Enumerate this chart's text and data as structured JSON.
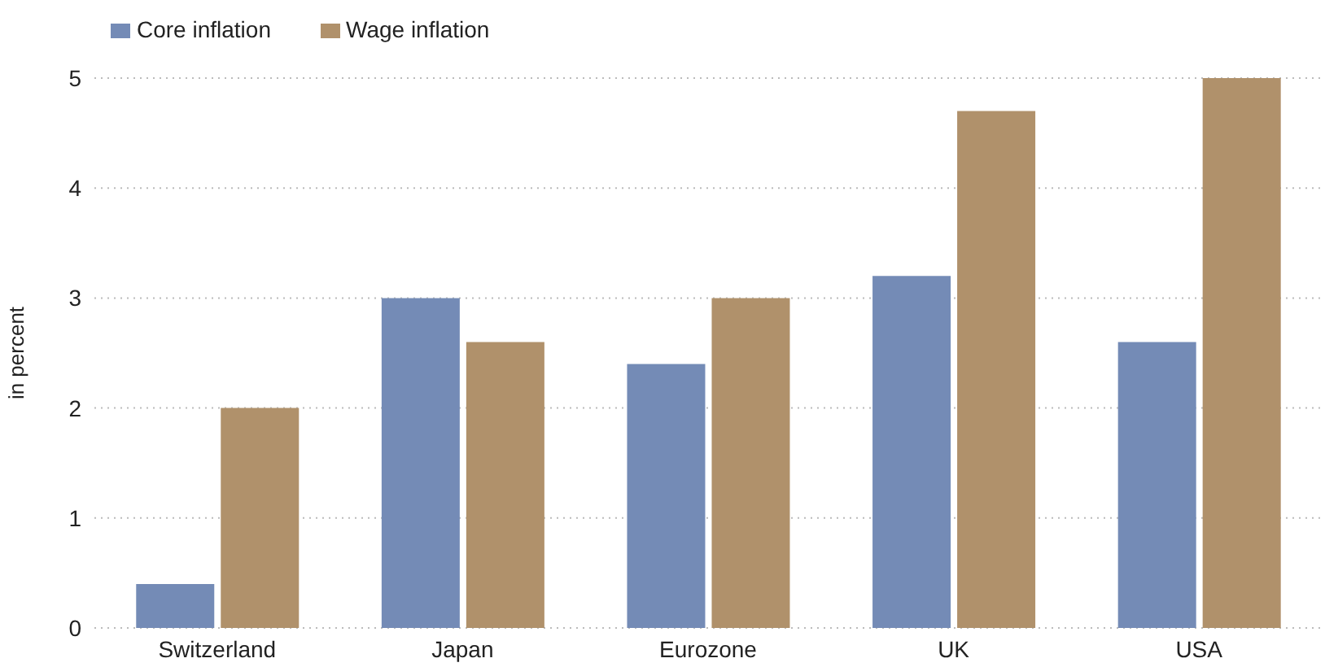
{
  "chart_data": {
    "type": "bar",
    "ylabel": "in percent",
    "categories": [
      "Switzerland",
      "Japan",
      "Eurozone",
      "UK",
      "USA"
    ],
    "series": [
      {
        "name": "Core inflation",
        "color": "#748bb6",
        "values": [
          0.4,
          3.0,
          2.4,
          3.2,
          2.6
        ]
      },
      {
        "name": "Wage inflation",
        "color": "#b0916b",
        "values": [
          2.0,
          2.6,
          3.0,
          4.7,
          5.0
        ]
      }
    ],
    "ylim": [
      0,
      5
    ],
    "yticks": [
      0,
      1,
      2,
      3,
      4,
      5
    ],
    "grid": "y",
    "legend": "top left"
  }
}
